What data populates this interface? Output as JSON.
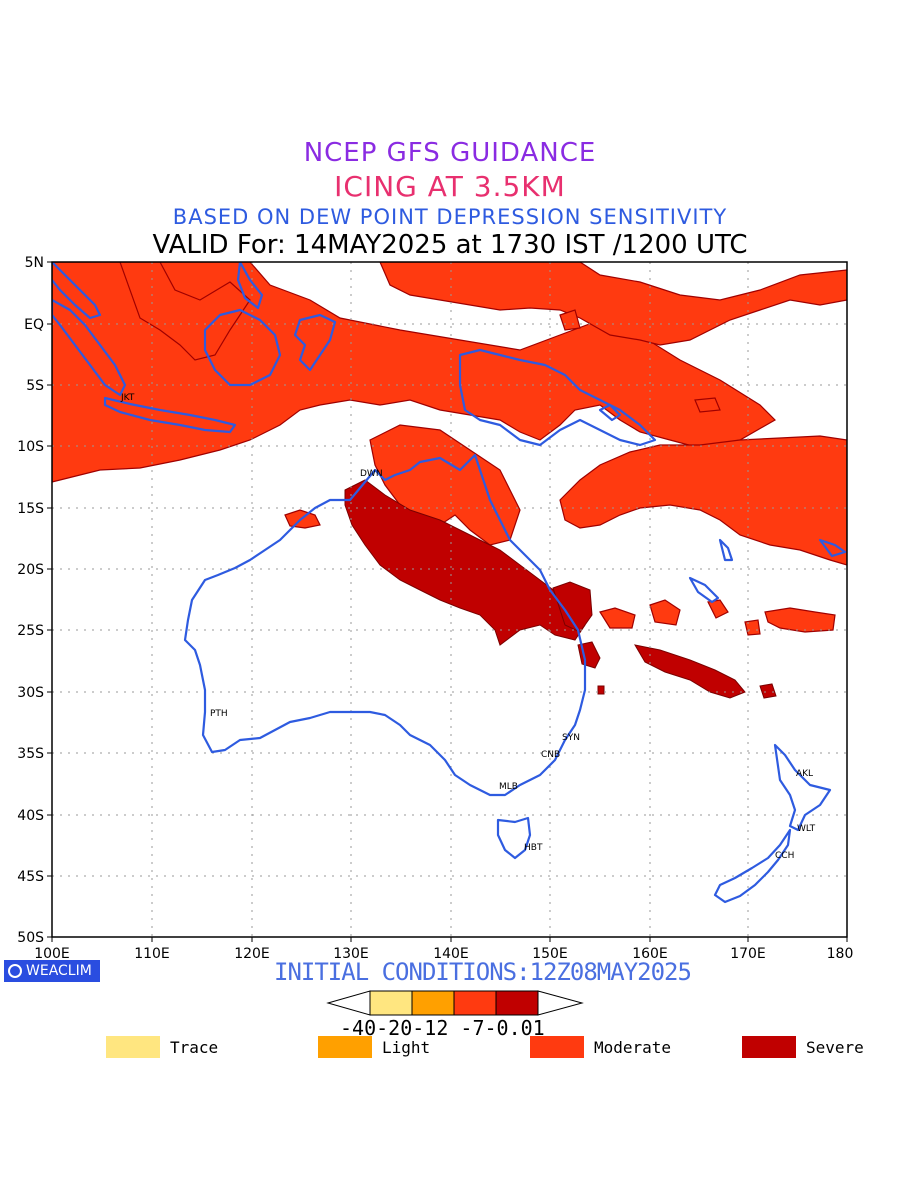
{
  "titles": {
    "line1": "NCEP GFS GUIDANCE",
    "line2": "ICING AT 3.5KM",
    "line3": "BASED ON DEW POINT DEPRESSION SENSITIVITY",
    "line4": "VALID For: 14MAY2025 at 1730 IST /1200 UTC"
  },
  "initial_conditions": "INITIAL CONDITIONS:12Z08MAY2025",
  "logo_text": "WEACLIM",
  "lat_labels": [
    "5N",
    "EQ",
    "5S",
    "10S",
    "15S",
    "20S",
    "25S",
    "30S",
    "35S",
    "40S",
    "45S",
    "50S"
  ],
  "lon_labels": [
    "100E",
    "110E",
    "120E",
    "130E",
    "140E",
    "150E",
    "160E",
    "170E",
    "180"
  ],
  "cities": [
    {
      "name": "JKT"
    },
    {
      "name": "DWN"
    },
    {
      "name": "PTH"
    },
    {
      "name": "SYN"
    },
    {
      "name": "CNB"
    },
    {
      "name": "MLB"
    },
    {
      "name": "HBT"
    },
    {
      "name": "AKL"
    },
    {
      "name": "WLT"
    },
    {
      "name": "CCH"
    }
  ],
  "colorbar": {
    "labels": "-40-20-12 -7-0.01",
    "colors": [
      "#ffe680",
      "#ffa000",
      "#ff3a10",
      "#c00000"
    ]
  },
  "legend": [
    {
      "label": "Trace",
      "color": "#ffe680"
    },
    {
      "label": "Light",
      "color": "#ffa000"
    },
    {
      "label": "Moderate",
      "color": "#ff3a10"
    },
    {
      "label": "Severe",
      "color": "#c00000"
    }
  ],
  "colors": {
    "moderate": "#ff3a10",
    "severe": "#c00000",
    "coast": "#2e5be0"
  }
}
